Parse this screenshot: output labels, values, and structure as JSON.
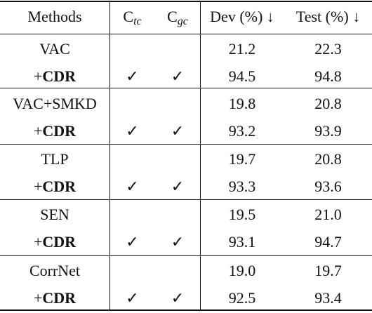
{
  "header": {
    "methods": "Methods",
    "ctc_base": "C",
    "ctc_sub": "tc",
    "cgc_base": "C",
    "cgc_sub": "gc",
    "dev": "Dev (%) ↓",
    "test": "Test (%) ↓"
  },
  "groups": [
    {
      "base": {
        "method": "VAC",
        "dev": "21.2",
        "test": "22.3"
      },
      "cdr": {
        "plus": "+",
        "name": "CDR",
        "ctc": "✓",
        "cgc": "✓",
        "dev": "94.5",
        "test": "94.8"
      }
    },
    {
      "base": {
        "method": "VAC+SMKD",
        "dev": "19.8",
        "test": "20.8"
      },
      "cdr": {
        "plus": "+",
        "name": "CDR",
        "ctc": "✓",
        "cgc": "✓",
        "dev": "93.2",
        "test": "93.9"
      }
    },
    {
      "base": {
        "method": "TLP",
        "dev": "19.7",
        "test": "20.8"
      },
      "cdr": {
        "plus": "+",
        "name": "CDR",
        "ctc": "✓",
        "cgc": "✓",
        "dev": "93.3",
        "test": "93.6"
      }
    },
    {
      "base": {
        "method": "SEN",
        "dev": "19.5",
        "test": "21.0"
      },
      "cdr": {
        "plus": "+",
        "name": "CDR",
        "ctc": "✓",
        "cgc": "✓",
        "dev": "93.1",
        "test": "94.7"
      }
    },
    {
      "base": {
        "method": "CorrNet",
        "dev": "19.0",
        "test": "19.7"
      },
      "cdr": {
        "plus": "+",
        "name": "CDR",
        "ctc": "✓",
        "cgc": "✓",
        "dev": "92.5",
        "test": "93.4"
      }
    }
  ]
}
